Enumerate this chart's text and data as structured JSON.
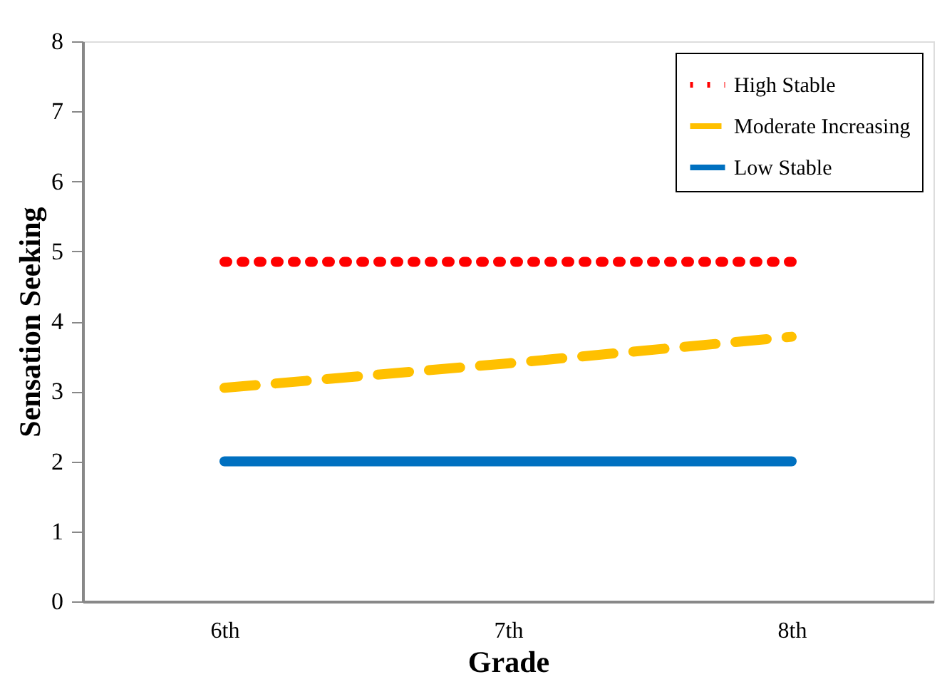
{
  "chart_data": {
    "type": "line",
    "xlabel": "Grade",
    "ylabel": "Sensation Seeking",
    "categories": [
      "6th",
      "7th",
      "8th"
    ],
    "series": [
      {
        "name": "High Stable",
        "color": "#ff0000",
        "line_style": "dotted",
        "values": [
          4.85,
          4.85,
          4.85
        ]
      },
      {
        "name": "Moderate Increasing",
        "color": "#ffc000",
        "line_style": "dashed",
        "values": [
          3.05,
          3.4,
          3.78
        ]
      },
      {
        "name": "Low Stable",
        "color": "#0070c0",
        "line_style": "solid",
        "values": [
          2.0,
          2.0,
          2.0
        ]
      }
    ],
    "ylim": [
      0,
      8
    ],
    "yticks": [
      0,
      1,
      2,
      3,
      4,
      5,
      6,
      7,
      8
    ],
    "grid": false,
    "legend": "top right",
    "marker": "none"
  }
}
